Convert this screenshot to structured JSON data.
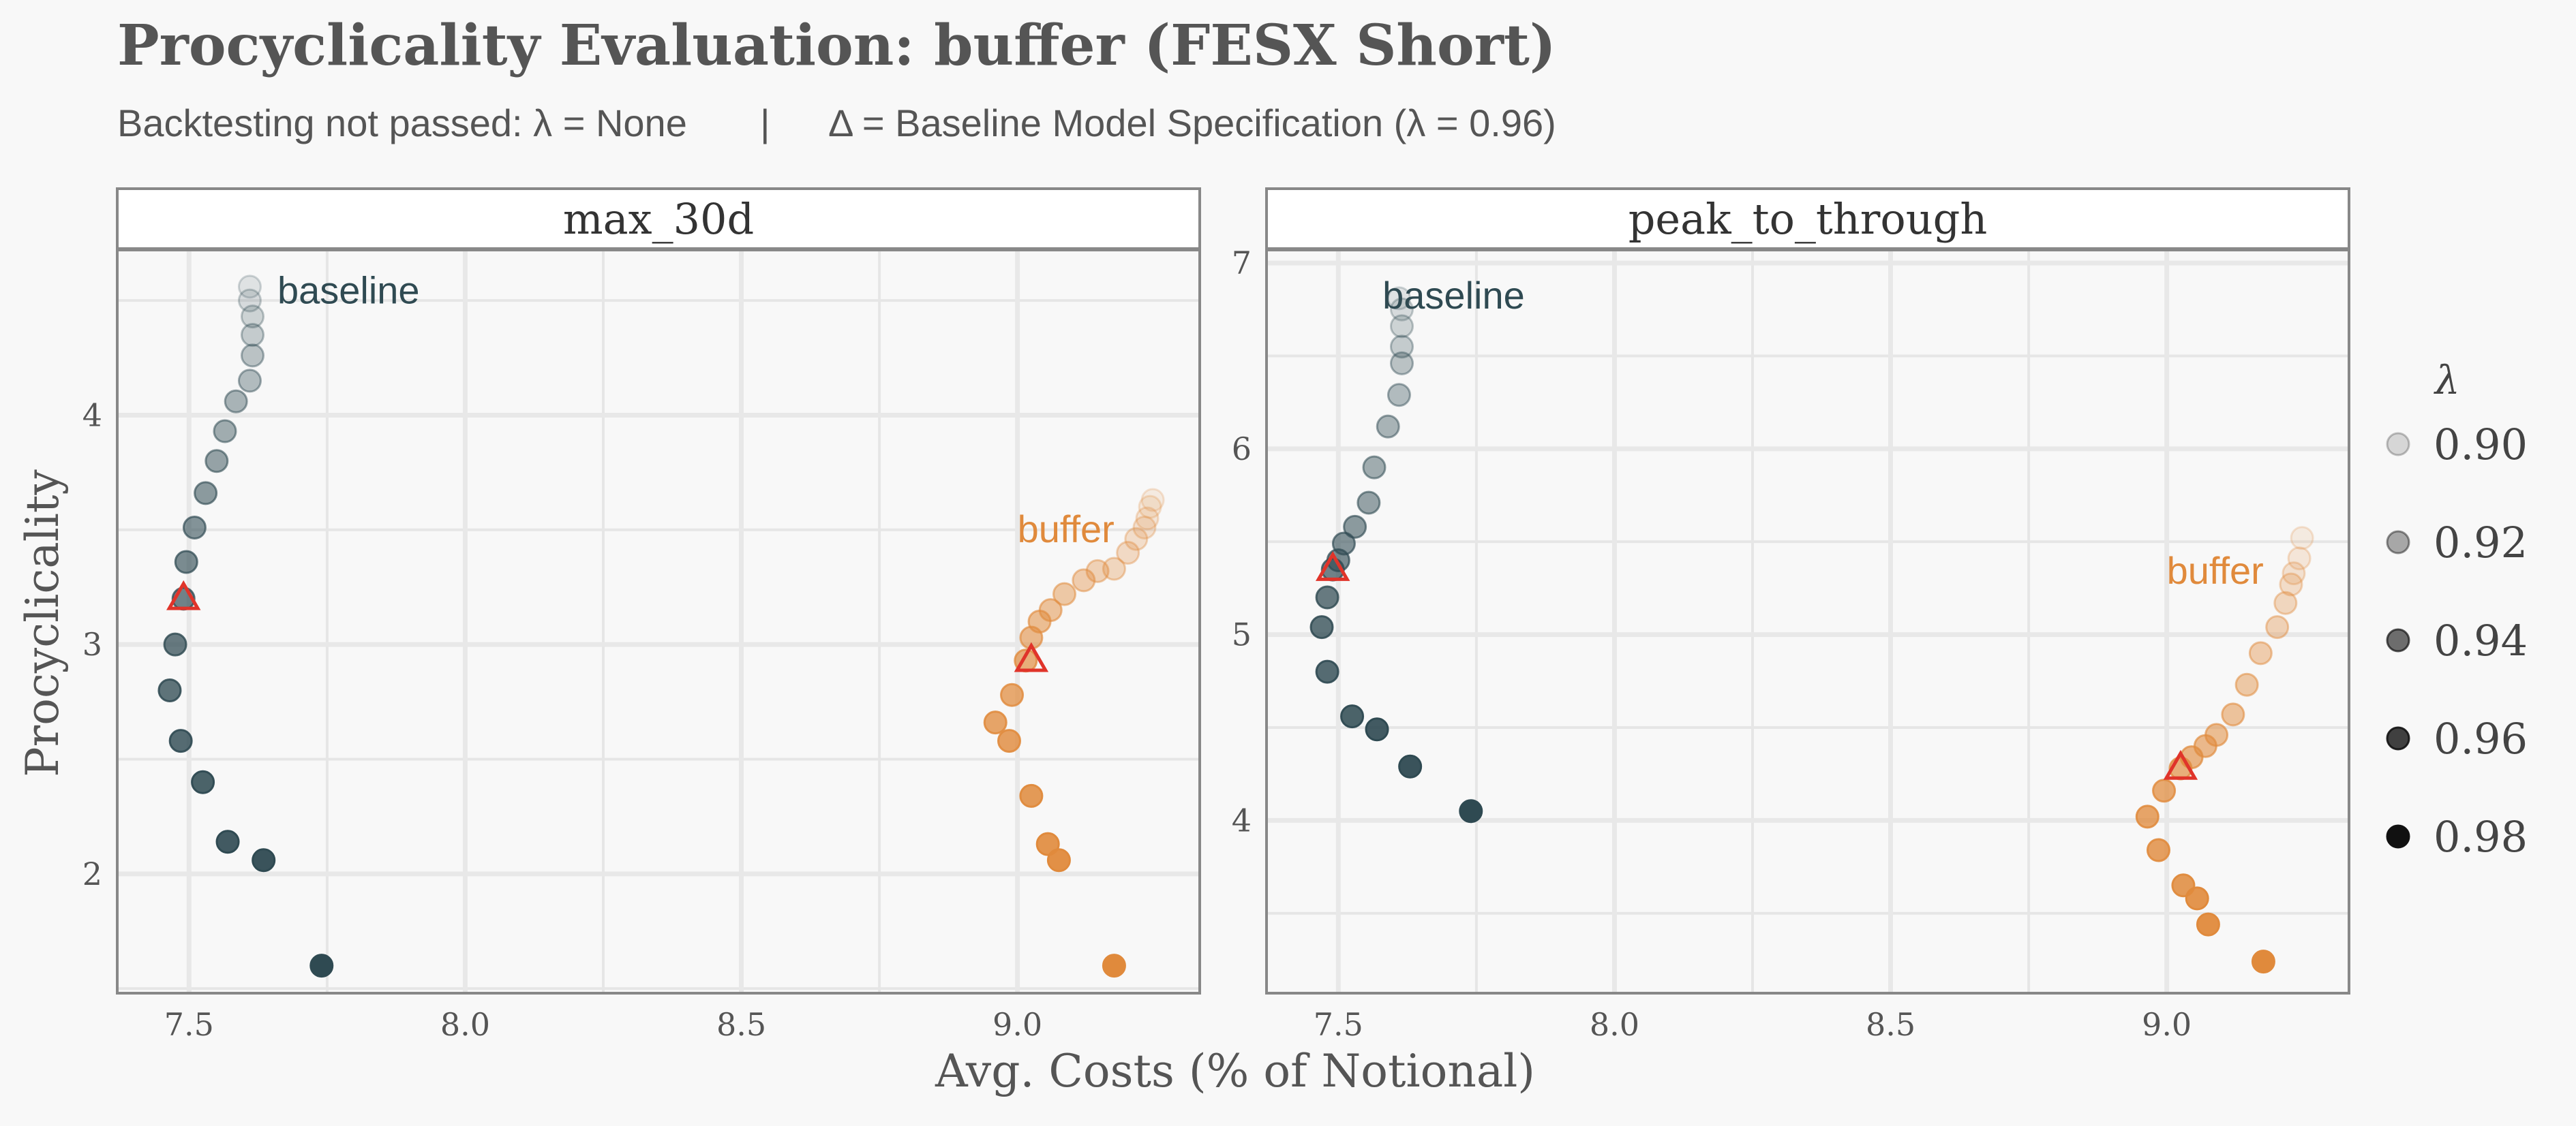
{
  "chart_data": {
    "type": "scatter",
    "title": "Procyclicality Evaluation: buffer (FESX Short)",
    "subtitle_left": "Backtesting not passed: λ = None",
    "subtitle_sep": "|",
    "subtitle_right": "Δ = Baseline Model Specification (λ = 0.96)",
    "xlabel": "Avg. Costs (% of Notional)",
    "ylabel": "Procyclicality",
    "x_ticks": [
      "7.5",
      "8.0",
      "8.5",
      "9.0"
    ],
    "xlim": [
      7.37,
      9.33
    ],
    "colors": {
      "baseline": "#2f4a52",
      "buffer": "#e08a3c",
      "marker_edge": "#e0342a"
    },
    "legend": {
      "title": "λ",
      "entries": [
        "0.90",
        "0.92",
        "0.94",
        "0.96",
        "0.98"
      ],
      "alphas": [
        0.15,
        0.35,
        0.6,
        0.8,
        1.0
      ]
    },
    "panels": [
      {
        "name": "max_30d",
        "ylim": [
          1.48,
          4.72
        ],
        "y_ticks": [
          "2",
          "3",
          "4"
        ],
        "labels": [
          {
            "text": "baseline",
            "series": "baseline",
            "x": 7.66,
            "y": 4.54
          },
          {
            "text": "buffer",
            "series": "buffer",
            "x": 9.0,
            "y": 3.5
          }
        ],
        "series": [
          {
            "name": "baseline",
            "points": [
              [
                7.61,
                4.56
              ],
              [
                7.61,
                4.5
              ],
              [
                7.615,
                4.43
              ],
              [
                7.615,
                4.35
              ],
              [
                7.615,
                4.26
              ],
              [
                7.61,
                4.15
              ],
              [
                7.585,
                4.06
              ],
              [
                7.565,
                3.93
              ],
              [
                7.55,
                3.8
              ],
              [
                7.53,
                3.66
              ],
              [
                7.51,
                3.51
              ],
              [
                7.495,
                3.36
              ],
              [
                7.49,
                3.2
              ],
              [
                7.475,
                3.0
              ],
              [
                7.465,
                2.8
              ],
              [
                7.485,
                2.58
              ],
              [
                7.525,
                2.4
              ],
              [
                7.57,
                2.14
              ],
              [
                7.635,
                2.06
              ],
              [
                7.74,
                1.6
              ]
            ],
            "lambdas": [
              0.9,
              0.905,
              0.91,
              0.915,
              0.92,
              0.925,
              0.93,
              0.935,
              0.94,
              0.945,
              0.95,
              0.955,
              0.96,
              0.965,
              0.97,
              0.975,
              0.98,
              0.985,
              0.99,
              0.995
            ],
            "baseline_spec": [
              7.49,
              3.2
            ]
          },
          {
            "name": "buffer",
            "points": [
              [
                9.245,
                3.63
              ],
              [
                9.24,
                3.6
              ],
              [
                9.235,
                3.55
              ],
              [
                9.23,
                3.51
              ],
              [
                9.215,
                3.46
              ],
              [
                9.2,
                3.4
              ],
              [
                9.175,
                3.33
              ],
              [
                9.145,
                3.32
              ],
              [
                9.12,
                3.28
              ],
              [
                9.085,
                3.22
              ],
              [
                9.06,
                3.15
              ],
              [
                9.04,
                3.1
              ],
              [
                9.025,
                3.03
              ],
              [
                9.015,
                2.93
              ],
              [
                8.99,
                2.78
              ],
              [
                8.96,
                2.66
              ],
              [
                8.985,
                2.58
              ],
              [
                9.025,
                2.34
              ],
              [
                9.055,
                2.13
              ],
              [
                9.075,
                2.06
              ],
              [
                9.175,
                1.6
              ]
            ],
            "lambdas": [
              0.9,
              0.903,
              0.906,
              0.91,
              0.913,
              0.917,
              0.92,
              0.925,
              0.93,
              0.935,
              0.94,
              0.945,
              0.95,
              0.96,
              0.965,
              0.97,
              0.975,
              0.98,
              0.985,
              0.99,
              0.995
            ],
            "baseline_spec": [
              9.025,
              2.93
            ]
          }
        ]
      },
      {
        "name": "peak_to_through",
        "ylim": [
          3.07,
          7.07
        ],
        "y_ticks": [
          "4",
          "5",
          "6",
          "7"
        ],
        "labels": [
          {
            "text": "baseline",
            "series": "baseline",
            "x": 7.58,
            "y": 6.82
          },
          {
            "text": "buffer",
            "series": "buffer",
            "x": 9.0,
            "y": 5.34
          }
        ],
        "series": [
          {
            "name": "baseline",
            "points": [
              [
                7.61,
                6.81
              ],
              [
                7.615,
                6.75
              ],
              [
                7.615,
                6.66
              ],
              [
                7.615,
                6.55
              ],
              [
                7.615,
                6.46
              ],
              [
                7.61,
                6.29
              ],
              [
                7.59,
                6.12
              ],
              [
                7.565,
                5.9
              ],
              [
                7.555,
                5.71
              ],
              [
                7.53,
                5.58
              ],
              [
                7.51,
                5.49
              ],
              [
                7.5,
                5.4
              ],
              [
                7.49,
                5.35
              ],
              [
                7.48,
                5.2
              ],
              [
                7.47,
                5.04
              ],
              [
                7.48,
                4.8
              ],
              [
                7.525,
                4.56
              ],
              [
                7.57,
                4.49
              ],
              [
                7.63,
                4.29
              ],
              [
                7.74,
                4.05
              ]
            ],
            "lambdas": [
              0.9,
              0.905,
              0.91,
              0.915,
              0.92,
              0.925,
              0.93,
              0.935,
              0.94,
              0.945,
              0.95,
              0.955,
              0.96,
              0.965,
              0.97,
              0.975,
              0.98,
              0.985,
              0.99,
              0.995
            ],
            "baseline_spec": [
              7.49,
              5.35
            ]
          },
          {
            "name": "buffer",
            "points": [
              [
                9.245,
                5.52
              ],
              [
                9.24,
                5.41
              ],
              [
                9.23,
                5.33
              ],
              [
                9.225,
                5.27
              ],
              [
                9.215,
                5.17
              ],
              [
                9.2,
                5.04
              ],
              [
                9.17,
                4.9
              ],
              [
                9.145,
                4.73
              ],
              [
                9.12,
                4.57
              ],
              [
                9.09,
                4.46
              ],
              [
                9.07,
                4.4
              ],
              [
                9.045,
                4.34
              ],
              [
                9.025,
                4.28
              ],
              [
                8.995,
                4.16
              ],
              [
                8.965,
                4.02
              ],
              [
                8.985,
                3.84
              ],
              [
                9.03,
                3.65
              ],
              [
                9.055,
                3.58
              ],
              [
                9.075,
                3.44
              ],
              [
                9.175,
                3.24
              ]
            ],
            "lambdas": [
              0.9,
              0.905,
              0.91,
              0.915,
              0.92,
              0.925,
              0.93,
              0.935,
              0.94,
              0.945,
              0.95,
              0.955,
              0.96,
              0.965,
              0.97,
              0.975,
              0.98,
              0.985,
              0.99,
              0.995
            ],
            "baseline_spec": [
              9.025,
              4.28
            ]
          }
        ]
      }
    ]
  }
}
